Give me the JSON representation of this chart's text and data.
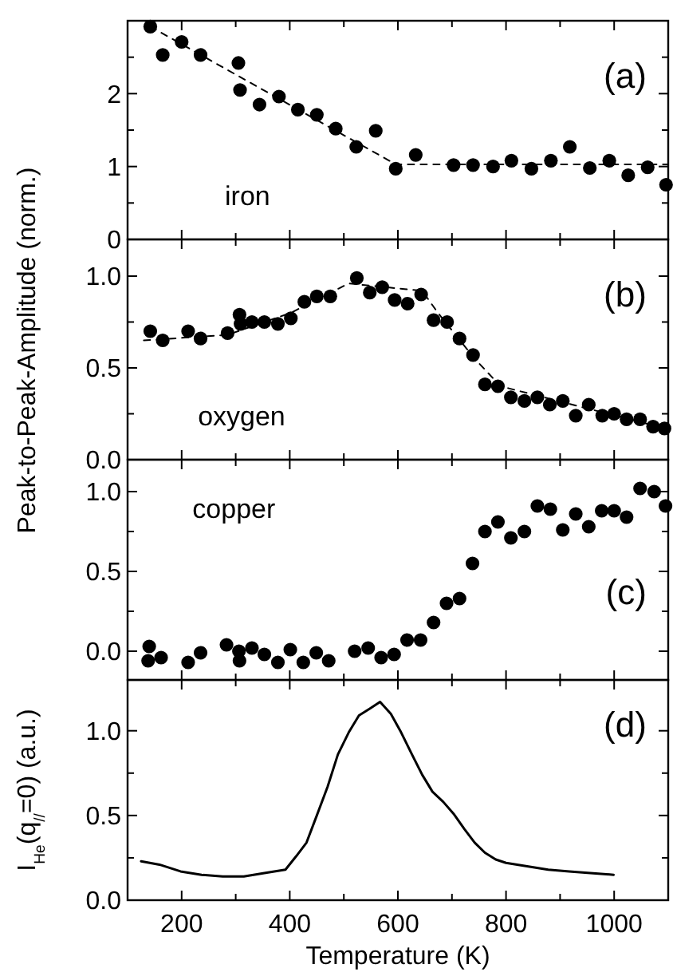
{
  "chart_data": [
    {
      "type": "scatter",
      "annotations": [
        "(a)",
        "iron"
      ],
      "xlim": [
        100,
        1100
      ],
      "ylim": [
        0,
        3
      ],
      "xticks": [
        {
          "value": 100,
          "label": null
        },
        {
          "value": 200,
          "label": null
        },
        {
          "value": 300,
          "label": null
        },
        {
          "value": 400,
          "label": null
        },
        {
          "value": 500,
          "label": null
        },
        {
          "value": 600,
          "label": null
        },
        {
          "value": 700,
          "label": null
        },
        {
          "value": 800,
          "label": null
        },
        {
          "value": 900,
          "label": null
        },
        {
          "value": 1000,
          "label": null
        }
      ],
      "yticks": [
        0,
        {
          "value": 0.5,
          "label": null
        },
        1,
        {
          "value": 1.5,
          "label": null
        },
        2,
        {
          "value": 2.5,
          "label": null
        }
      ],
      "tick_labels": "y",
      "grid": false,
      "series": [
        {
          "marker": "circle",
          "color": "#000000",
          "x": [
            142,
            165,
            200,
            235,
            305,
            308,
            344,
            380,
            415,
            450,
            485,
            523,
            559,
            596,
            633,
            703,
            739,
            776,
            810,
            847,
            883,
            918,
            955,
            991,
            1026,
            1062,
            1096
          ],
          "values": [
            2.92,
            2.53,
            2.71,
            2.53,
            2.42,
            2.05,
            1.85,
            1.96,
            1.78,
            1.71,
            1.52,
            1.27,
            1.49,
            0.97,
            1.16,
            1.02,
            1.02,
            1.0,
            1.08,
            0.97,
            1.08,
            1.27,
            0.98,
            1.08,
            0.88,
            0.99,
            0.75
          ]
        },
        {
          "type": "line",
          "marker": "none",
          "line_style": "dashed",
          "color": "#000000",
          "x": [
            142,
            596,
            640,
            1100
          ],
          "values": [
            2.92,
            1.03,
            1.03,
            1.03
          ]
        }
      ]
    },
    {
      "type": "scatter",
      "ylabel": "Peak-to-Peak-Amplitude (norm.)",
      "annotations": [
        "(b)",
        "oxygen"
      ],
      "xlim": [
        100,
        1100
      ],
      "ylim": [
        0,
        1.2
      ],
      "xticks": [
        {
          "value": 100,
          "label": null
        },
        {
          "value": 200,
          "label": null
        },
        {
          "value": 300,
          "label": null
        },
        {
          "value": 400,
          "label": null
        },
        {
          "value": 500,
          "label": null
        },
        {
          "value": 600,
          "label": null
        },
        {
          "value": 700,
          "label": null
        },
        {
          "value": 800,
          "label": null
        },
        {
          "value": 900,
          "label": null
        },
        {
          "value": 1000,
          "label": null
        }
      ],
      "yticks": [
        {
          "value": 0,
          "label": "0.0"
        },
        {
          "value": 0.25,
          "label": null
        },
        {
          "value": 0.5,
          "label": "0.5"
        },
        {
          "value": 0.75,
          "label": null
        },
        {
          "value": 1,
          "label": "1.0"
        }
      ],
      "tick_labels": "y",
      "grid": false,
      "series": [
        {
          "marker": "circle",
          "color": "#000000",
          "x": [
            142,
            165,
            212,
            235,
            285,
            307,
            309,
            330,
            353,
            378,
            402,
            427,
            450,
            475,
            524,
            548,
            571,
            594,
            618,
            643,
            666,
            691,
            714,
            739,
            761,
            785,
            809,
            834,
            858,
            881,
            905,
            929,
            953,
            978,
            1000,
            1023,
            1048,
            1072,
            1093
          ],
          "values": [
            0.7,
            0.65,
            0.7,
            0.66,
            0.69,
            0.79,
            0.74,
            0.75,
            0.75,
            0.74,
            0.77,
            0.86,
            0.89,
            0.89,
            0.99,
            0.91,
            0.94,
            0.87,
            0.85,
            0.9,
            0.76,
            0.75,
            0.66,
            0.57,
            0.41,
            0.4,
            0.34,
            0.32,
            0.34,
            0.3,
            0.32,
            0.24,
            0.3,
            0.24,
            0.25,
            0.22,
            0.22,
            0.18,
            0.17
          ]
        },
        {
          "type": "line",
          "marker": "none",
          "line_style": "dashed",
          "color": "#000000",
          "x": [
            130,
            285,
            402,
            509,
            645,
            674,
            742,
            790,
            936,
            1082
          ],
          "values": [
            0.65,
            0.68,
            0.8,
            0.96,
            0.92,
            0.8,
            0.55,
            0.4,
            0.29,
            0.18
          ]
        }
      ]
    },
    {
      "type": "scatter",
      "annotations": [
        "(c)",
        "copper"
      ],
      "xlim": [
        100,
        1100
      ],
      "ylim": [
        -0.18,
        1.2
      ],
      "xticks": [
        {
          "value": 100,
          "label": null
        },
        {
          "value": 200,
          "label": null
        },
        {
          "value": 300,
          "label": null
        },
        {
          "value": 400,
          "label": null
        },
        {
          "value": 500,
          "label": null
        },
        {
          "value": 600,
          "label": null
        },
        {
          "value": 700,
          "label": null
        },
        {
          "value": 800,
          "label": null
        },
        {
          "value": 900,
          "label": null
        },
        {
          "value": 1000,
          "label": null
        }
      ],
      "yticks": [
        {
          "value": 0,
          "label": "0.0"
        },
        {
          "value": 0.25,
          "label": null
        },
        {
          "value": 0.5,
          "label": "0.5"
        },
        {
          "value": 0.75,
          "label": null
        },
        {
          "value": 1,
          "label": "1.0"
        }
      ],
      "tick_labels": "y",
      "grid": false,
      "series": [
        {
          "marker": "circle",
          "color": "#000000",
          "x": [
            140,
            138,
            162,
            212,
            235,
            283,
            306,
            307,
            330,
            353,
            378,
            401,
            425,
            449,
            472,
            520,
            545,
            569,
            593,
            617,
            642,
            666,
            690,
            714,
            738,
            761,
            785,
            809,
            834,
            858,
            882,
            905,
            929,
            953,
            977,
            1000,
            1023,
            1048,
            1074,
            1095
          ],
          "values": [
            0.03,
            -0.06,
            -0.04,
            -0.07,
            -0.01,
            0.04,
            0.0,
            -0.06,
            0.02,
            -0.02,
            -0.07,
            0.01,
            -0.07,
            -0.01,
            -0.06,
            0.0,
            0.02,
            -0.04,
            -0.02,
            0.07,
            0.07,
            0.18,
            0.3,
            0.33,
            0.55,
            0.75,
            0.81,
            0.71,
            0.75,
            0.91,
            0.89,
            0.76,
            0.86,
            0.78,
            0.88,
            0.88,
            0.84,
            1.02,
            1.0,
            0.91
          ]
        }
      ]
    },
    {
      "type": "line",
      "ylabel": "I$_{He}$(q$_{//}$=0) (a.u.)",
      "xlabel": "Temperature (K)",
      "annotations": [
        "(d)"
      ],
      "xlim": [
        100,
        1100
      ],
      "ylim": [
        0,
        1.3
      ],
      "xticks": [
        {
          "value": 100,
          "label": null
        },
        200,
        {
          "value": 300,
          "label": null
        },
        400,
        {
          "value": 500,
          "label": null
        },
        600,
        {
          "value": 700,
          "label": null
        },
        800,
        {
          "value": 900,
          "label": null
        },
        1000
      ],
      "yticks": [
        {
          "value": 0,
          "label": "0.0"
        },
        {
          "value": 0.25,
          "label": null
        },
        {
          "value": 0.5,
          "label": "0.5"
        },
        {
          "value": 0.75,
          "label": null
        },
        {
          "value": 1,
          "label": "1.0"
        }
      ],
      "grid": false,
      "series": [
        {
          "marker": "none",
          "line_style": "solid",
          "color": "#000000",
          "x": [
            125,
            159,
            198,
            237,
            276,
            315,
            353,
            392,
            412,
            431,
            450,
            470,
            489,
            509,
            528,
            548,
            567,
            587,
            606,
            626,
            645,
            664,
            684,
            703,
            723,
            742,
            761,
            781,
            800,
            839,
            878,
            917,
            956,
            999
          ],
          "values": [
            0.23,
            0.21,
            0.17,
            0.15,
            0.14,
            0.14,
            0.16,
            0.18,
            0.26,
            0.34,
            0.5,
            0.67,
            0.86,
            0.99,
            1.09,
            1.13,
            1.17,
            1.1,
            0.99,
            0.86,
            0.74,
            0.64,
            0.58,
            0.51,
            0.42,
            0.34,
            0.28,
            0.24,
            0.22,
            0.2,
            0.18,
            0.17,
            0.16,
            0.15
          ]
        }
      ]
    }
  ]
}
